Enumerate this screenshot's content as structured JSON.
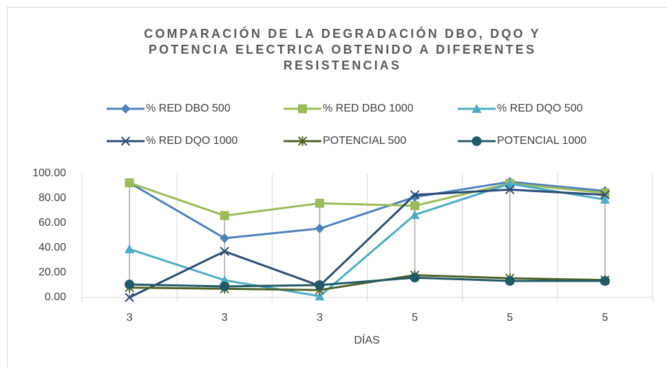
{
  "chart_data": {
    "type": "line",
    "title": "COMPARACIÓN DE LA DEGRADACIÓN DBO, DQO Y POTENCIA ELECTRICA OBTENIDO A DIFERENTES RESISTENCIAS",
    "xlabel": "DÍAS",
    "categories": [
      "3",
      "3",
      "3",
      "5",
      "5",
      "5"
    ],
    "series": [
      {
        "name": "% RED DBO 500",
        "color": "#4f81bd",
        "marker": "diamond",
        "values": [
          92.5,
          47.8,
          55.6,
          81,
          93.3,
          86
        ]
      },
      {
        "name": "% RED DBO 1000",
        "color": "#9bbb59",
        "marker": "square",
        "values": [
          92.5,
          66,
          76,
          74,
          92,
          84.4
        ]
      },
      {
        "name": "% RED DQO 500",
        "color": "#4bacc6",
        "marker": "triangle",
        "values": [
          39,
          13.9,
          1,
          66.7,
          91.7,
          79
        ]
      },
      {
        "name": "% RED DQO 1000",
        "color": "#2c4d75",
        "marker": "x",
        "values": [
          0,
          37.2,
          9.4,
          82.8,
          87,
          82.8
        ]
      },
      {
        "name": "POTENCIAL 500",
        "color": "#4f6228",
        "marker": "star",
        "values": [
          8,
          7,
          6,
          18,
          15.5,
          14
        ]
      },
      {
        "name": "POTENCIAL 1000",
        "color": "#215968",
        "marker": "circle",
        "values": [
          10.5,
          8.9,
          10,
          16,
          13.3,
          13.3
        ]
      }
    ],
    "ylim": [
      0,
      100
    ],
    "yticks": [
      {
        "value": 0,
        "label": "0.00"
      },
      {
        "value": 20,
        "label": "20.00"
      },
      {
        "value": 40,
        "label": "40.00"
      },
      {
        "value": 60,
        "label": "60.00"
      },
      {
        "value": 80,
        "label": "80.00"
      },
      {
        "value": 100,
        "label": "100.00"
      }
    ],
    "drop_lines": true,
    "legend": "top"
  }
}
